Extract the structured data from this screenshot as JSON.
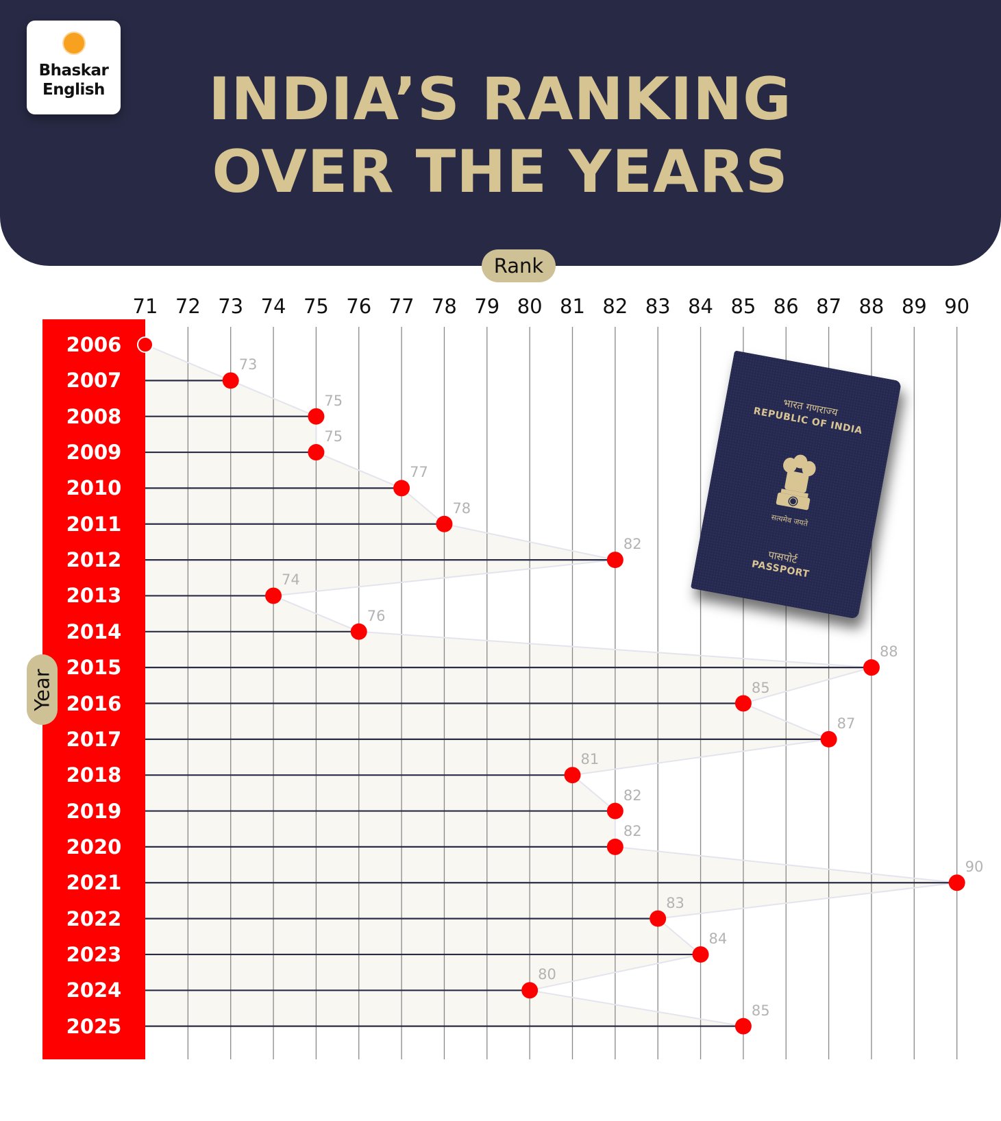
{
  "brand": {
    "logo_line1": "Bhaskar",
    "logo_line2": "English",
    "sun_color": "#f7a11e"
  },
  "header": {
    "title_line1": "INDIA’S RANKING",
    "title_line2": "OVER THE YEARS",
    "bg_color": "#282a45",
    "title_color": "#d6c492"
  },
  "axes": {
    "x_label": "Rank",
    "y_label": "Year"
  },
  "passport": {
    "hindi_country": "भारत गणराज्य",
    "country": "REPUBLIC OF INDIA",
    "motto": "सत्यमेव जयते",
    "hindi_passport": "पासपोर्ट",
    "passport": "PASSPORT"
  },
  "colors": {
    "accent_red": "#ff0000",
    "pill": "#cfc196",
    "fill": "#f8f7f2",
    "fill_stroke": "#e4e4ee",
    "connector": "#2a2b45",
    "grid": "#888888",
    "value_label": "#b3b3b3"
  },
  "chart_data": {
    "type": "lollipop",
    "title": "INDIA’S RANKING OVER THE YEARS",
    "xlabel": "Rank",
    "ylabel": "Year",
    "xlim": [
      71,
      90
    ],
    "x_ticks": [
      "71",
      "72",
      "73",
      "74",
      "75",
      "76",
      "77",
      "78",
      "79",
      "80",
      "81",
      "82",
      "83",
      "84",
      "85",
      "86",
      "87",
      "88",
      "89",
      "90"
    ],
    "categories": [
      "2006",
      "2007",
      "2008",
      "2009",
      "2010",
      "2011",
      "2012",
      "2013",
      "2014",
      "2015",
      "2016",
      "2017",
      "2018",
      "2019",
      "2020",
      "2021",
      "2022",
      "2023",
      "2024",
      "2025"
    ],
    "values": [
      71,
      73,
      75,
      75,
      77,
      78,
      82,
      74,
      76,
      88,
      85,
      87,
      81,
      82,
      82,
      90,
      83,
      84,
      80,
      85
    ],
    "labels_shown": [
      "",
      "73",
      "75",
      "75",
      "77",
      "78",
      "82",
      "74",
      "76",
      "88",
      "85",
      "87",
      "81",
      "82",
      "82",
      "90",
      "83",
      "84",
      "80",
      "85"
    ],
    "grid": true
  }
}
